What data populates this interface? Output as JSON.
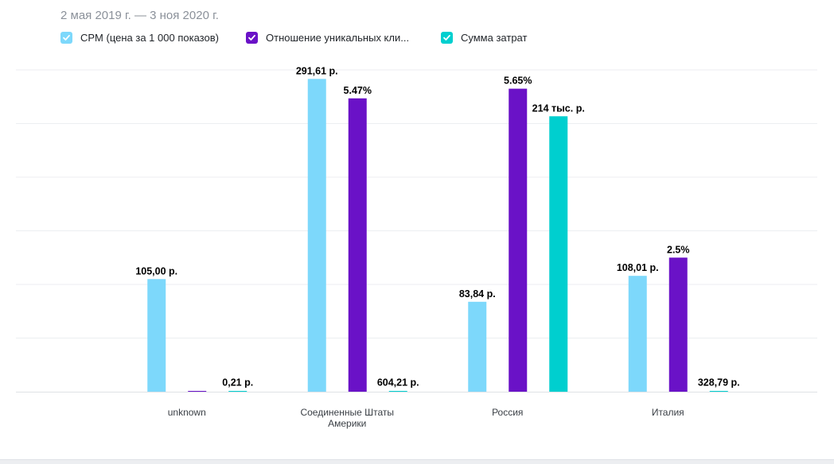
{
  "header": {
    "date_range": "2 мая 2019 г. — 3 ноя 2020 г."
  },
  "legend": [
    {
      "label": "CPM (цена за 1 000 показов)",
      "color": "#7dd8fb",
      "checked": true
    },
    {
      "label": "Отношение уникальных кли...",
      "color": "#6a12c7",
      "checked": true
    },
    {
      "label": "Сумма затрат",
      "color": "#00cfcf",
      "checked": true
    }
  ],
  "chart_data": {
    "type": "bar",
    "categories": [
      "unknown",
      "Соединенные Штаты Америки",
      "Россия",
      "Италия"
    ],
    "category_lines": [
      [
        "unknown"
      ],
      [
        "Соединенные Штаты",
        "Америки"
      ],
      [
        "Россия"
      ],
      [
        "Италия"
      ]
    ],
    "grid": true,
    "legend_position": "top-left",
    "series": [
      {
        "name": "CPM (цена за 1 000 показов)",
        "color": "#7dd8fb",
        "values": [
          105.0,
          291.61,
          83.84,
          108.01
        ],
        "labels": [
          "105,00 р.",
          "291,61 р.",
          "83,84 р.",
          "108,01 р."
        ],
        "ylim": [
          0,
          300
        ]
      },
      {
        "name": "Отношение уникальных кли...",
        "color": "#6a12c7",
        "values": [
          0,
          5.47,
          5.65,
          2.5
        ],
        "labels": [
          "",
          "5.47%",
          "5.65%",
          "2.5%"
        ],
        "ylim": [
          0,
          6
        ]
      },
      {
        "name": "Сумма затрат",
        "color": "#00cfcf",
        "values": [
          0.21,
          604.21,
          214000,
          328.79
        ],
        "labels": [
          "0,21 р.",
          "604,21 р.",
          "214 тыс. р.",
          "328,79 р."
        ],
        "ylim": [
          0,
          250000
        ]
      }
    ]
  }
}
